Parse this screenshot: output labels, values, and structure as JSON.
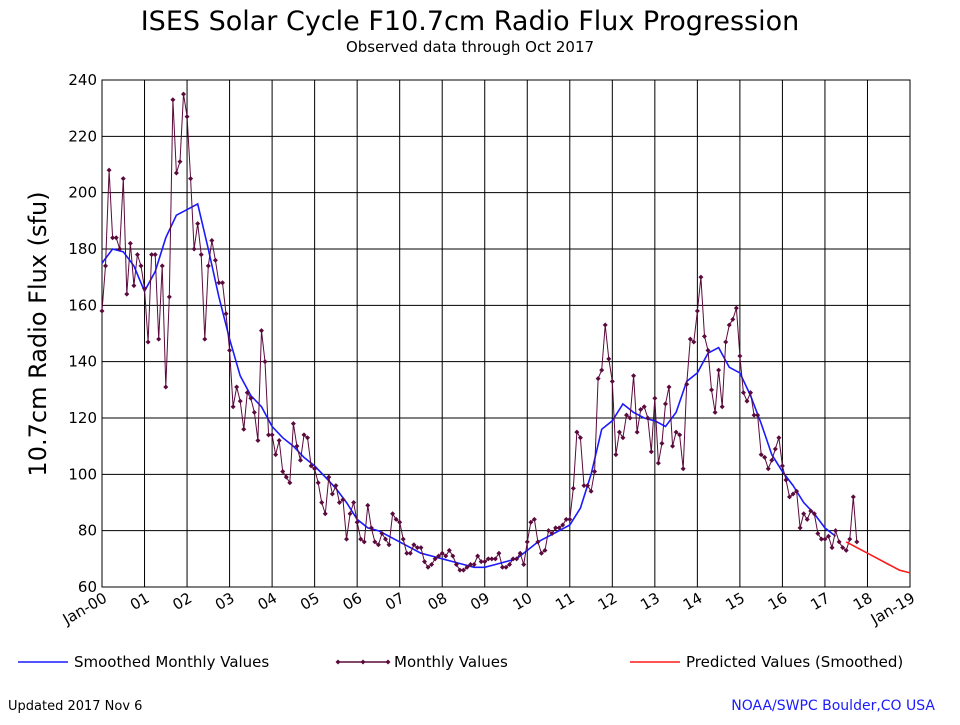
{
  "chart_data": {
    "type": "line",
    "title": "ISES Solar Cycle F10.7cm Radio Flux Progression",
    "subtitle": "Observed data through Oct 2017",
    "y_label": "10.7cm Radio Flux (sfu)",
    "footer_left": "Updated 2017 Nov  6",
    "footer_right": "NOAA/SWPC Boulder,CO USA",
    "xlim": [
      2000,
      2019
    ],
    "xticks": [
      {
        "value": 2000,
        "label": "Jan-00"
      },
      {
        "value": 2001,
        "label": "01"
      },
      {
        "value": 2002,
        "label": "02"
      },
      {
        "value": 2003,
        "label": "03"
      },
      {
        "value": 2004,
        "label": "04"
      },
      {
        "value": 2005,
        "label": "05"
      },
      {
        "value": 2006,
        "label": "06"
      },
      {
        "value": 2007,
        "label": "07"
      },
      {
        "value": 2008,
        "label": "08"
      },
      {
        "value": 2009,
        "label": "09"
      },
      {
        "value": 2010,
        "label": "10"
      },
      {
        "value": 2011,
        "label": "11"
      },
      {
        "value": 2012,
        "label": "12"
      },
      {
        "value": 2013,
        "label": "13"
      },
      {
        "value": 2014,
        "label": "14"
      },
      {
        "value": 2015,
        "label": "15"
      },
      {
        "value": 2016,
        "label": "16"
      },
      {
        "value": 2017,
        "label": "17"
      },
      {
        "value": 2018,
        "label": "18"
      },
      {
        "value": 2019,
        "label": "Jan-19"
      }
    ],
    "ylim": [
      60,
      240
    ],
    "yticks": [
      60,
      80,
      100,
      120,
      140,
      160,
      180,
      200,
      220,
      240
    ],
    "grid": true,
    "legend": "bottom",
    "series": [
      {
        "name": "Smoothed Monthly Values",
        "color": "#1a1aff",
        "markers": false,
        "x": [
          "2000-01",
          "2000-04",
          "2000-07",
          "2000-10",
          "2001-01",
          "2001-04",
          "2001-07",
          "2001-10",
          "2002-01",
          "2002-04",
          "2002-07",
          "2002-10",
          "2003-01",
          "2003-04",
          "2003-07",
          "2003-10",
          "2004-01",
          "2004-04",
          "2004-07",
          "2004-10",
          "2005-01",
          "2005-04",
          "2005-07",
          "2005-10",
          "2006-01",
          "2006-04",
          "2006-07",
          "2006-10",
          "2007-01",
          "2007-04",
          "2007-07",
          "2007-10",
          "2008-01",
          "2008-04",
          "2008-07",
          "2008-10",
          "2009-01",
          "2009-04",
          "2009-07",
          "2009-10",
          "2010-01",
          "2010-04",
          "2010-07",
          "2010-10",
          "2011-01",
          "2011-04",
          "2011-07",
          "2011-10",
          "2012-01",
          "2012-04",
          "2012-07",
          "2012-10",
          "2013-01",
          "2013-04",
          "2013-07",
          "2013-10",
          "2014-01",
          "2014-04",
          "2014-07",
          "2014-10",
          "2015-01",
          "2015-04",
          "2015-07",
          "2015-10",
          "2016-01",
          "2016-04",
          "2016-07",
          "2016-10",
          "2017-01",
          "2017-04"
        ],
        "values": [
          175,
          180,
          179,
          174,
          165,
          172,
          184,
          192,
          194,
          196,
          180,
          163,
          148,
          135,
          128,
          124,
          117,
          113,
          110,
          106,
          103,
          99,
          95,
          90,
          84,
          81,
          80,
          78,
          76,
          74,
          72,
          71,
          70,
          69,
          68,
          67,
          67,
          68,
          69,
          70,
          73,
          76,
          78,
          80,
          82,
          88,
          100,
          116,
          119,
          125,
          122,
          120,
          119,
          117,
          122,
          133,
          136,
          143,
          145,
          138,
          136,
          128,
          118,
          107,
          101,
          96,
          90,
          86,
          81,
          78
        ]
      },
      {
        "name": "Monthly Values",
        "color": "#5a0a3c",
        "markers": true,
        "x": [
          "2000-01",
          "2000-02",
          "2000-03",
          "2000-04",
          "2000-05",
          "2000-06",
          "2000-07",
          "2000-08",
          "2000-09",
          "2000-10",
          "2000-11",
          "2000-12",
          "2001-01",
          "2001-02",
          "2001-03",
          "2001-04",
          "2001-05",
          "2001-06",
          "2001-07",
          "2001-08",
          "2001-09",
          "2001-10",
          "2001-11",
          "2001-12",
          "2002-01",
          "2002-02",
          "2002-03",
          "2002-04",
          "2002-05",
          "2002-06",
          "2002-07",
          "2002-08",
          "2002-09",
          "2002-10",
          "2002-11",
          "2002-12",
          "2003-01",
          "2003-02",
          "2003-03",
          "2003-04",
          "2003-05",
          "2003-06",
          "2003-07",
          "2003-08",
          "2003-09",
          "2003-10",
          "2003-11",
          "2003-12",
          "2004-01",
          "2004-02",
          "2004-03",
          "2004-04",
          "2004-05",
          "2004-06",
          "2004-07",
          "2004-08",
          "2004-09",
          "2004-10",
          "2004-11",
          "2004-12",
          "2005-01",
          "2005-02",
          "2005-03",
          "2005-04",
          "2005-05",
          "2005-06",
          "2005-07",
          "2005-08",
          "2005-09",
          "2005-10",
          "2005-11",
          "2005-12",
          "2006-01",
          "2006-02",
          "2006-03",
          "2006-04",
          "2006-05",
          "2006-06",
          "2006-07",
          "2006-08",
          "2006-09",
          "2006-10",
          "2006-11",
          "2006-12",
          "2007-01",
          "2007-02",
          "2007-03",
          "2007-04",
          "2007-05",
          "2007-06",
          "2007-07",
          "2007-08",
          "2007-09",
          "2007-10",
          "2007-11",
          "2007-12",
          "2008-01",
          "2008-02",
          "2008-03",
          "2008-04",
          "2008-05",
          "2008-06",
          "2008-07",
          "2008-08",
          "2008-09",
          "2008-10",
          "2008-11",
          "2008-12",
          "2009-01",
          "2009-02",
          "2009-03",
          "2009-04",
          "2009-05",
          "2009-06",
          "2009-07",
          "2009-08",
          "2009-09",
          "2009-10",
          "2009-11",
          "2009-12",
          "2010-01",
          "2010-02",
          "2010-03",
          "2010-04",
          "2010-05",
          "2010-06",
          "2010-07",
          "2010-08",
          "2010-09",
          "2010-10",
          "2010-11",
          "2010-12",
          "2011-01",
          "2011-02",
          "2011-03",
          "2011-04",
          "2011-05",
          "2011-06",
          "2011-07",
          "2011-08",
          "2011-09",
          "2011-10",
          "2011-11",
          "2011-12",
          "2012-01",
          "2012-02",
          "2012-03",
          "2012-04",
          "2012-05",
          "2012-06",
          "2012-07",
          "2012-08",
          "2012-09",
          "2012-10",
          "2012-11",
          "2012-12",
          "2013-01",
          "2013-02",
          "2013-03",
          "2013-04",
          "2013-05",
          "2013-06",
          "2013-07",
          "2013-08",
          "2013-09",
          "2013-10",
          "2013-11",
          "2013-12",
          "2014-01",
          "2014-02",
          "2014-03",
          "2014-04",
          "2014-05",
          "2014-06",
          "2014-07",
          "2014-08",
          "2014-09",
          "2014-10",
          "2014-11",
          "2014-12",
          "2015-01",
          "2015-02",
          "2015-03",
          "2015-04",
          "2015-05",
          "2015-06",
          "2015-07",
          "2015-08",
          "2015-09",
          "2015-10",
          "2015-11",
          "2015-12",
          "2016-01",
          "2016-02",
          "2016-03",
          "2016-04",
          "2016-05",
          "2016-06",
          "2016-07",
          "2016-08",
          "2016-09",
          "2016-10",
          "2016-11",
          "2016-12",
          "2017-01",
          "2017-02",
          "2017-03",
          "2017-04",
          "2017-05",
          "2017-06",
          "2017-07",
          "2017-08",
          "2017-09",
          "2017-10"
        ],
        "values": [
          158,
          174,
          208,
          184,
          184,
          180,
          205,
          164,
          182,
          167,
          178,
          174,
          166,
          147,
          178,
          178,
          148,
          174,
          131,
          163,
          233,
          207,
          211,
          235,
          227,
          205,
          180,
          189,
          178,
          148,
          174,
          183,
          176,
          168,
          168,
          157,
          144,
          124,
          131,
          126,
          116,
          129,
          127,
          122,
          112,
          151,
          140,
          114,
          114,
          107,
          112,
          101,
          99,
          97,
          118,
          110,
          105,
          114,
          113,
          103,
          102,
          97,
          90,
          86,
          99,
          93,
          96,
          90,
          91,
          77,
          86,
          90,
          83,
          77,
          76,
          89,
          81,
          76,
          75,
          79,
          77,
          75,
          86,
          84,
          83,
          77,
          72,
          72,
          75,
          74,
          74,
          69,
          67,
          68,
          70,
          71,
          72,
          71,
          73,
          71,
          68,
          66,
          66,
          67,
          68,
          68,
          71,
          69,
          69,
          70,
          70,
          70,
          72,
          67,
          67,
          68,
          70,
          70,
          72,
          68,
          76,
          83,
          84,
          76,
          72,
          73,
          80,
          79,
          81,
          81,
          82,
          84,
          84,
          95,
          115,
          113,
          96,
          96,
          94,
          101,
          134,
          137,
          153,
          141,
          133,
          107,
          115,
          113,
          121,
          120,
          135,
          115,
          123,
          124,
          120,
          108,
          127,
          104,
          111,
          125,
          131,
          110,
          115,
          114,
          102,
          132,
          148,
          147,
          158,
          170,
          149,
          144,
          130,
          122,
          137,
          124,
          147,
          153,
          155,
          159,
          142,
          129,
          126,
          129,
          121,
          121,
          107,
          106,
          102,
          105,
          109,
          113,
          103,
          98,
          92,
          93,
          94,
          81,
          86,
          84,
          87,
          86,
          79,
          77,
          77,
          78,
          74,
          80,
          76,
          74,
          73,
          77,
          92,
          76
        ]
      },
      {
        "name": "Predicted Values (Smoothed)",
        "color": "#ff1a1a",
        "markers": false,
        "x": [
          "2017-07",
          "2017-10",
          "2018-01",
          "2018-04",
          "2018-07",
          "2018-10",
          "2019-01"
        ],
        "values": [
          76,
          74,
          72,
          70,
          68,
          66,
          65
        ]
      }
    ]
  }
}
